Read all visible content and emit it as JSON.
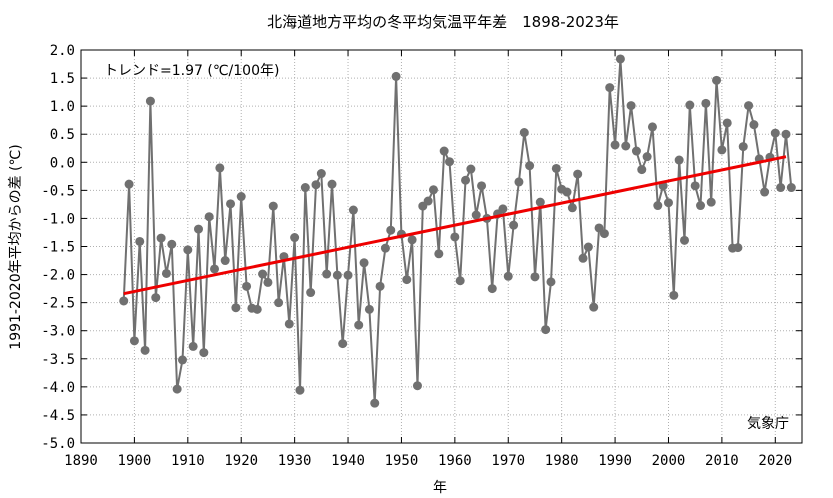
{
  "chart_data": {
    "type": "line",
    "title": "北海道地方平均の冬平均気温平年差　1898-2023年",
    "xlabel": "年",
    "ylabel": "1991-2020年平均からの差 (℃)",
    "xlim": [
      1890,
      2025
    ],
    "ylim": [
      -5.0,
      2.0
    ],
    "x_ticks": [
      "1890",
      "1900",
      "1910",
      "1920",
      "1930",
      "1940",
      "1950",
      "1960",
      "1970",
      "1980",
      "1990",
      "2000",
      "2010",
      "2020"
    ],
    "y_ticks": [
      "2.0",
      "1.5",
      "1.0",
      "0.5",
      "0.0",
      "-0.5",
      "-1.0",
      "-1.5",
      "-2.0",
      "-2.5",
      "-3.0",
      "-3.5",
      "-4.0",
      "-4.5",
      "-5.0"
    ],
    "grid": true,
    "trend_label": "トレンド=1.97 (℃/100年)",
    "source_label": "気象庁",
    "colors": {
      "series": "#707070",
      "marker": "#707070",
      "trend": "#ee0000",
      "grid": "#b0b0b0"
    },
    "series": [
      {
        "x": [
          1898,
          1899,
          1900,
          1901,
          1902,
          1903,
          1904,
          1905,
          1906,
          1907,
          1908,
          1909,
          1910,
          1911,
          1912,
          1913,
          1914,
          1915,
          1916,
          1917,
          1918,
          1919,
          1920,
          1921,
          1922,
          1923,
          1924,
          1925,
          1926,
          1927,
          1928,
          1929,
          1930,
          1931,
          1932,
          1933,
          1934,
          1935,
          1936,
          1937,
          1938,
          1939,
          1940,
          1941,
          1942,
          1943,
          1944,
          1945,
          1946,
          1947,
          1948,
          1949,
          1950,
          1951,
          1952,
          1953,
          1954,
          1955,
          1956,
          1957,
          1958,
          1959,
          1960,
          1961,
          1962,
          1963,
          1964,
          1965,
          1966,
          1967,
          1968,
          1969,
          1970,
          1971,
          1972,
          1973,
          1974,
          1975,
          1976,
          1977,
          1978,
          1979,
          1980,
          1981,
          1982,
          1983,
          1984,
          1985,
          1986,
          1987,
          1988,
          1989,
          1990,
          1991,
          1992,
          1993,
          1994,
          1995,
          1996,
          1997,
          1998,
          1999,
          2000,
          2001,
          2002,
          2003,
          2004,
          2005,
          2006,
          2007,
          2008,
          2009,
          2010,
          2011,
          2012,
          2013,
          2014,
          2015,
          2016,
          2017,
          2018,
          2019,
          2020,
          2021,
          2022,
          2023
        ],
        "values": [
          -2.47,
          -0.39,
          -3.18,
          -1.41,
          -3.35,
          1.09,
          -2.41,
          -1.35,
          -1.98,
          -1.46,
          -4.04,
          -3.52,
          -1.56,
          -3.28,
          -1.19,
          -3.39,
          -0.97,
          -1.9,
          -0.1,
          -1.75,
          -0.74,
          -2.59,
          -0.61,
          -2.21,
          -2.6,
          -2.62,
          -1.99,
          -2.14,
          -0.78,
          -2.5,
          -1.68,
          -2.88,
          -1.34,
          -4.06,
          -0.45,
          -2.32,
          -0.4,
          -0.2,
          -1.99,
          -0.39,
          -2.01,
          -3.23,
          -2.01,
          -0.85,
          -2.9,
          -1.79,
          -2.62,
          -4.29,
          -2.21,
          -1.53,
          -1.21,
          1.53,
          -1.28,
          -2.09,
          -1.38,
          -3.98,
          -0.78,
          -0.69,
          -0.49,
          -1.63,
          0.2,
          0.01,
          -1.33,
          -2.11,
          -0.32,
          -0.12,
          -0.94,
          -0.42,
          -1.0,
          -2.25,
          -0.92,
          -0.83,
          -2.03,
          -1.12,
          -0.35,
          0.53,
          -0.06,
          -2.04,
          -0.71,
          -2.98,
          -2.13,
          -0.11,
          -0.48,
          -0.53,
          -0.81,
          -0.21,
          -1.71,
          -1.51,
          -2.58,
          -1.17,
          -1.27,
          1.33,
          0.31,
          1.84,
          0.29,
          1.01,
          0.2,
          -0.13,
          0.1,
          0.63,
          -0.77,
          -0.42,
          -0.72,
          -2.37,
          0.04,
          -1.39,
          1.02,
          -0.42,
          -0.77,
          1.05,
          -0.71,
          1.46,
          0.22,
          0.7,
          -1.53,
          -1.52,
          0.28,
          1.01,
          0.67,
          0.06,
          -0.53,
          0.09,
          0.52,
          -0.45,
          0.5,
          -0.45
        ]
      }
    ],
    "trend": {
      "x": [
        1898,
        2022
      ],
      "values": [
        -2.34,
        0.1
      ]
    }
  }
}
